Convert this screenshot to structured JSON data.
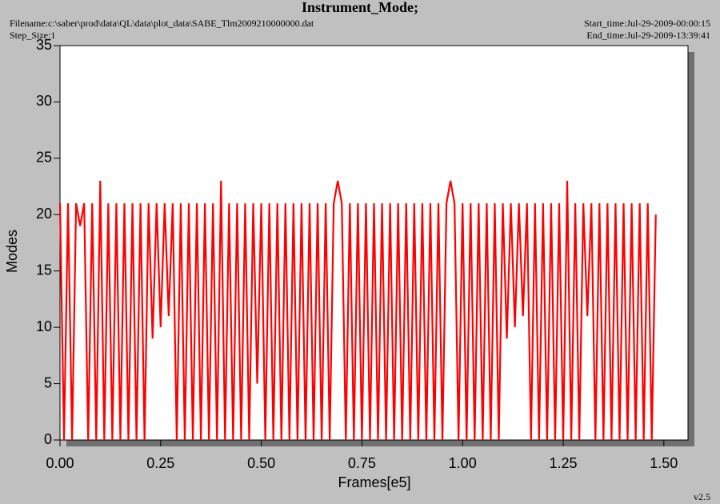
{
  "chart_data": {
    "type": "line",
    "title": "Instrument_Mode;",
    "filename": "Filename:c:\\saber\\prod\\data\\QL\\data\\plot_data\\SABE_Tlm2009210000000.dat",
    "step_size": "Step_Size:1",
    "start_time": "Start_time:Jul-29-2009-00:00:15",
    "end_time": "End_time:Jul-29-2009-13:39:41",
    "version": "v2.5",
    "xlabel": "Frames[e5]",
    "ylabel": "Modes",
    "color": "#ff0000",
    "xlim": [
      0,
      1.56
    ],
    "ylim": [
      0,
      35
    ],
    "xticks": [
      {
        "value": 0,
        "label": "0.00"
      },
      {
        "value": 0.25,
        "label": "0.25"
      },
      {
        "value": 0.5,
        "label": "0.50"
      },
      {
        "value": 0.75,
        "label": "0.75"
      },
      {
        "value": 1,
        "label": "1.00"
      },
      {
        "value": 1.25,
        "label": "1.25"
      },
      {
        "value": 1.5,
        "label": "1.50"
      }
    ],
    "yticks": [
      0,
      5,
      10,
      15,
      20,
      25,
      30,
      35
    ],
    "x": [
      0,
      0.01,
      0.02,
      0.03,
      0.04,
      0.05,
      0.06,
      0.07,
      0.08,
      0.09,
      0.1,
      0.11,
      0.12,
      0.13,
      0.14,
      0.15,
      0.16,
      0.17,
      0.18,
      0.19,
      0.2,
      0.21,
      0.22,
      0.23,
      0.24,
      0.25,
      0.26,
      0.27,
      0.28,
      0.29,
      0.3,
      0.31,
      0.32,
      0.33,
      0.34,
      0.35,
      0.36,
      0.37,
      0.38,
      0.39,
      0.4,
      0.41,
      0.42,
      0.43,
      0.44,
      0.45,
      0.46,
      0.47,
      0.48,
      0.49,
      0.5,
      0.51,
      0.52,
      0.53,
      0.54,
      0.55,
      0.56,
      0.57,
      0.58,
      0.59,
      0.6,
      0.61,
      0.62,
      0.63,
      0.64,
      0.65,
      0.66,
      0.67,
      0.68,
      0.69,
      0.7,
      0.71,
      0.72,
      0.73,
      0.74,
      0.75,
      0.76,
      0.77,
      0.78,
      0.79,
      0.8,
      0.81,
      0.82,
      0.83,
      0.84,
      0.85,
      0.86,
      0.87,
      0.88,
      0.89,
      0.9,
      0.91,
      0.92,
      0.93,
      0.94,
      0.95,
      0.96,
      0.97,
      0.98,
      0.99,
      1,
      1.01,
      1.02,
      1.03,
      1.04,
      1.05,
      1.06,
      1.07,
      1.08,
      1.09,
      1.1,
      1.11,
      1.12,
      1.13,
      1.14,
      1.15,
      1.16,
      1.17,
      1.18,
      1.19,
      1.2,
      1.21,
      1.22,
      1.23,
      1.24,
      1.25,
      1.26,
      1.27,
      1.28,
      1.29,
      1.3,
      1.31,
      1.32,
      1.33,
      1.34,
      1.35,
      1.36,
      1.37,
      1.38,
      1.39,
      1.4,
      1.41,
      1.42,
      1.43,
      1.44,
      1.45,
      1.46,
      1.47,
      1.48
    ],
    "values": [
      21,
      0,
      21,
      0,
      21,
      19,
      21,
      0,
      21,
      0,
      23,
      0,
      21,
      0,
      21,
      0,
      21,
      0,
      21,
      0,
      21,
      0,
      21,
      9,
      21,
      10,
      21,
      11,
      21,
      0,
      21,
      0,
      21,
      0,
      21,
      0,
      21,
      0,
      21,
      0,
      23,
      0,
      21,
      0,
      21,
      0,
      21,
      0,
      21,
      5,
      21,
      0,
      21,
      0,
      21,
      0,
      21,
      0,
      21,
      0,
      21,
      0,
      21,
      0,
      21,
      0,
      21,
      0,
      21,
      23,
      21,
      0,
      21,
      0,
      21,
      0,
      21,
      0,
      21,
      0,
      21,
      0,
      21,
      0,
      21,
      0,
      21,
      0,
      21,
      0,
      21,
      0,
      21,
      0,
      21,
      0,
      21,
      23,
      21,
      0,
      21,
      0,
      21,
      0,
      21,
      0,
      21,
      0,
      21,
      0,
      21,
      9,
      21,
      10,
      21,
      11,
      21,
      0,
      21,
      0,
      21,
      0,
      21,
      0,
      21,
      0,
      23,
      0,
      21,
      0,
      21,
      11,
      21,
      0,
      21,
      0,
      21,
      0,
      21,
      0,
      21,
      0,
      21,
      0,
      21,
      0,
      21,
      0,
      20
    ]
  }
}
